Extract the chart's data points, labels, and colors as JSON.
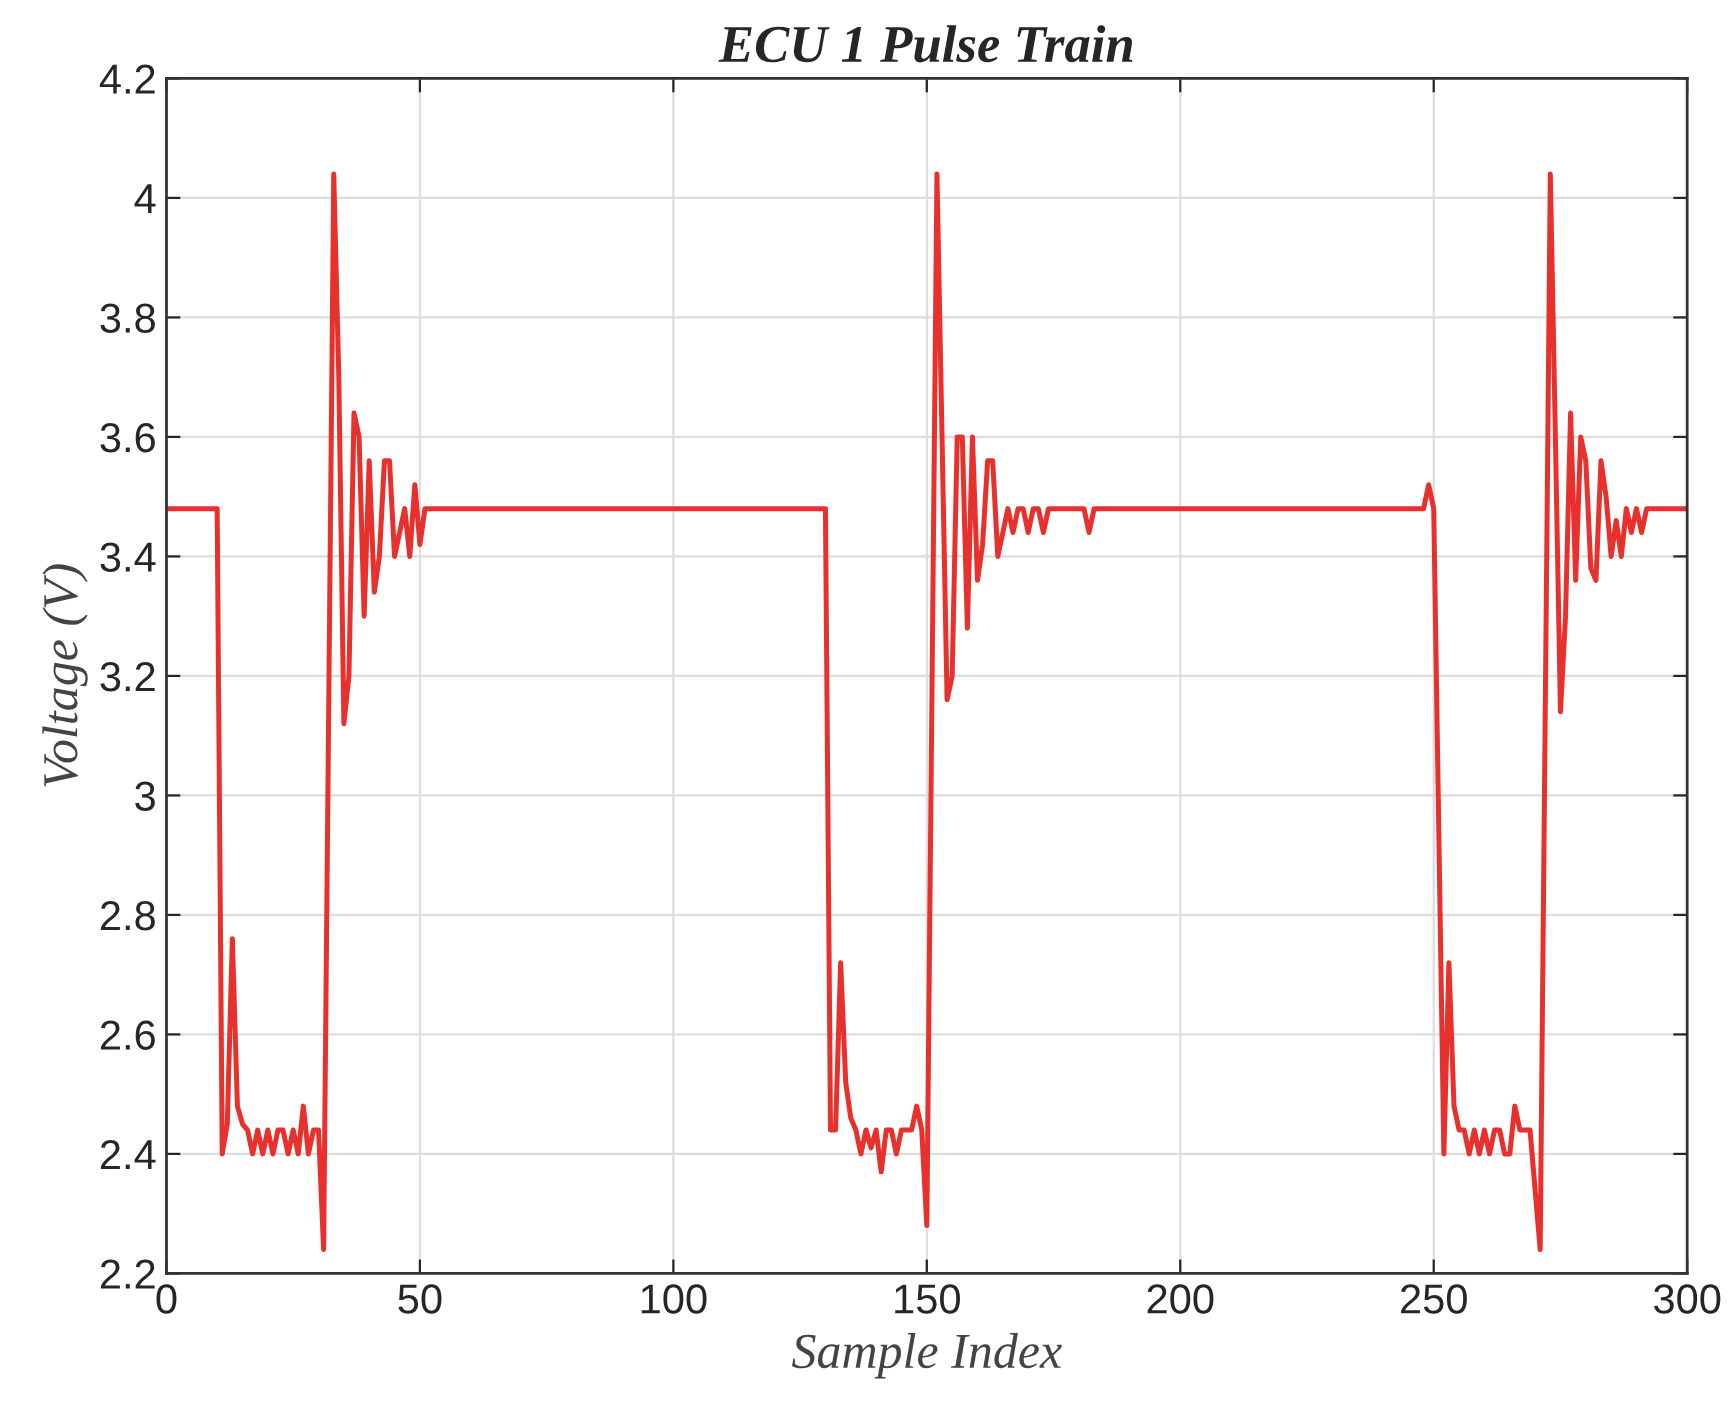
{
  "chart_data": {
    "type": "line",
    "title": "ECU 1 Pulse Train",
    "xlabel": "Sample Index",
    "ylabel": "Voltage (V)",
    "xlim": [
      0,
      300
    ],
    "xticks": [
      0,
      50,
      100,
      150,
      200,
      250,
      300
    ],
    "ylim": [
      2.2,
      4.2
    ],
    "yticks": [
      2.2,
      2.4,
      2.6,
      2.8,
      3,
      3.2,
      3.4,
      3.6,
      3.8,
      4,
      4.2
    ],
    "grid": true,
    "marker": "none",
    "line_style": "solid",
    "series": [
      {
        "color": "#e8302c",
        "x": [
          0,
          10,
          11,
          12,
          13,
          14,
          15,
          16,
          17,
          18,
          19,
          20,
          21,
          22,
          23,
          24,
          25,
          26,
          27,
          28,
          29,
          30,
          31,
          33,
          34,
          35,
          36,
          37,
          38,
          39,
          40,
          41,
          42,
          43,
          44,
          45,
          46,
          47,
          48,
          49,
          50,
          51,
          129,
          130,
          131,
          132,
          133,
          134,
          135,
          136,
          137,
          138,
          139,
          140,
          141,
          142,
          143,
          144,
          145,
          146,
          147,
          148,
          149,
          150,
          152,
          153,
          154,
          155,
          156,
          157,
          158,
          159,
          160,
          161,
          162,
          163,
          164,
          165,
          166,
          167,
          168,
          169,
          170,
          171,
          172,
          173,
          174,
          181,
          182,
          183,
          248,
          249,
          250,
          252,
          253,
          254,
          255,
          256,
          257,
          258,
          259,
          260,
          261,
          262,
          263,
          264,
          265,
          266,
          267,
          268,
          269,
          270,
          271,
          273,
          274,
          275,
          276,
          277,
          278,
          279,
          280,
          281,
          282,
          283,
          284,
          285,
          286,
          287,
          288,
          289,
          290,
          291,
          292,
          300
        ],
        "values": [
          3.48,
          3.48,
          2.4,
          2.45,
          2.76,
          2.48,
          2.45,
          2.44,
          2.4,
          2.44,
          2.4,
          2.44,
          2.4,
          2.44,
          2.44,
          2.4,
          2.44,
          2.4,
          2.48,
          2.4,
          2.44,
          2.44,
          2.24,
          4.04,
          3.7,
          3.12,
          3.2,
          3.64,
          3.6,
          3.3,
          3.56,
          3.34,
          3.4,
          3.56,
          3.56,
          3.4,
          3.44,
          3.48,
          3.4,
          3.52,
          3.42,
          3.48,
          3.48,
          3.48,
          2.44,
          2.44,
          2.72,
          2.52,
          2.46,
          2.44,
          2.4,
          2.44,
          2.41,
          2.44,
          2.37,
          2.44,
          2.44,
          2.4,
          2.44,
          2.44,
          2.44,
          2.48,
          2.44,
          2.28,
          4.04,
          3.6,
          3.16,
          3.2,
          3.6,
          3.6,
          3.28,
          3.6,
          3.36,
          3.42,
          3.56,
          3.56,
          3.4,
          3.44,
          3.48,
          3.44,
          3.48,
          3.48,
          3.44,
          3.48,
          3.48,
          3.44,
          3.48,
          3.48,
          3.44,
          3.48,
          3.48,
          3.52,
          3.48,
          2.4,
          2.72,
          2.48,
          2.44,
          2.44,
          2.4,
          2.44,
          2.4,
          2.44,
          2.4,
          2.44,
          2.44,
          2.4,
          2.4,
          2.48,
          2.44,
          2.44,
          2.44,
          2.34,
          2.24,
          4.04,
          3.6,
          3.14,
          3.3,
          3.64,
          3.36,
          3.6,
          3.56,
          3.38,
          3.36,
          3.56,
          3.5,
          3.4,
          3.46,
          3.4,
          3.48,
          3.44,
          3.48,
          3.44,
          3.48,
          3.48
        ]
      }
    ]
  }
}
